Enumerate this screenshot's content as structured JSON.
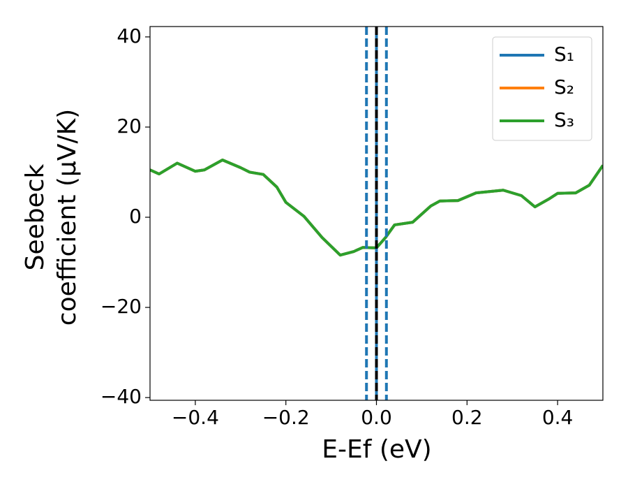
{
  "chart_data": {
    "type": "line",
    "xlabel": "E-Ef (eV)",
    "ylabel": [
      "Seebeck",
      "coefficient  (μV/K)"
    ],
    "x": [
      -0.5,
      -0.48,
      -0.44,
      -0.4,
      -0.38,
      -0.34,
      -0.3,
      -0.28,
      -0.25,
      -0.22,
      -0.2,
      -0.16,
      -0.12,
      -0.08,
      -0.05,
      -0.03,
      0,
      0.02,
      0.04,
      0.08,
      0.12,
      0.14,
      0.18,
      0.22,
      0.28,
      0.32,
      0.35,
      0.38,
      0.4,
      0.44,
      0.47,
      0.5
    ],
    "series": [
      {
        "name": "S₁",
        "color": "#1f77b4",
        "values": [
          10.5,
          9.6,
          12,
          10.2,
          10.5,
          12.7,
          11,
          10,
          9.5,
          6.7,
          3.3,
          0.2,
          -4.5,
          -8.4,
          -7.6,
          -6.7,
          -6.8,
          -4.5,
          -1.7,
          -1.1,
          2.5,
          3.6,
          3.7,
          5.4,
          6,
          4.8,
          2.3,
          4,
          5.3,
          5.4,
          7.1,
          11.5
        ]
      },
      {
        "name": "S₂",
        "color": "#ff7f0e",
        "values": [
          10.5,
          9.6,
          12,
          10.2,
          10.5,
          12.7,
          11,
          10,
          9.5,
          6.7,
          3.3,
          0.2,
          -4.5,
          -8.4,
          -7.6,
          -6.7,
          -6.8,
          -4.5,
          -1.7,
          -1.1,
          2.5,
          3.6,
          3.7,
          5.4,
          6,
          4.8,
          2.3,
          4,
          5.3,
          5.4,
          7.1,
          11.5
        ]
      },
      {
        "name": "S₃",
        "color": "#2ca02c",
        "values": [
          10.5,
          9.6,
          12,
          10.2,
          10.5,
          12.7,
          11,
          10,
          9.5,
          6.7,
          3.3,
          0.2,
          -4.5,
          -8.4,
          -7.6,
          -6.7,
          -6.8,
          -4.5,
          -1.7,
          -1.1,
          2.5,
          3.6,
          3.7,
          5.4,
          6,
          4.8,
          2.3,
          4,
          5.3,
          5.4,
          7.1,
          11.5
        ]
      }
    ],
    "vlines": [
      {
        "x": -0.022,
        "color": "#1f77b4",
        "style": "dashed"
      },
      {
        "x": 0,
        "color": "#1f77b4",
        "style": "solid"
      },
      {
        "x": 0,
        "color": "#000000",
        "style": "dashed"
      },
      {
        "x": 0.022,
        "color": "#1f77b4",
        "style": "dashed"
      }
    ],
    "xlim": [
      -0.5,
      0.5
    ],
    "ylim": [
      -40.6,
      42.3
    ],
    "xticks": [
      {
        "value": -0.4,
        "label": "−0.4"
      },
      {
        "value": -0.2,
        "label": "−0.2"
      },
      {
        "value": 0,
        "label": "0.0"
      },
      0.2,
      0.4
    ],
    "yticks": [
      {
        "value": -40,
        "label": "−40"
      },
      {
        "value": -20,
        "label": "−20"
      },
      0,
      20,
      40
    ],
    "legend": "upper right"
  }
}
